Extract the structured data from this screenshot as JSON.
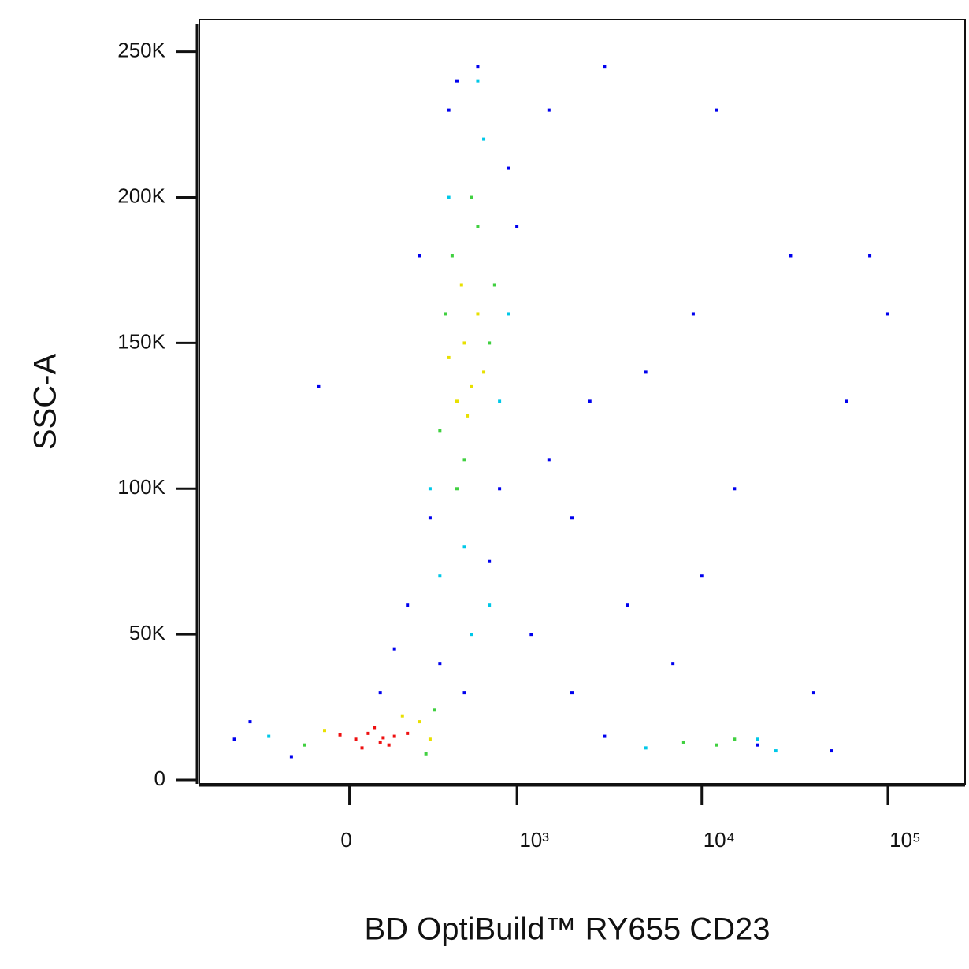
{
  "chart_data": {
    "type": "scatter",
    "x_label": "BD OptiBuild™ RY655 CD23",
    "y_label": "SSC-A",
    "xscale": "biexponential",
    "xlim": [
      -800,
      260000
    ],
    "ylim": [
      -800,
      261000
    ],
    "xticks": [
      0,
      {
        "value": 1000,
        "label": "10³"
      },
      {
        "value": 10000,
        "label": "10⁴"
      },
      {
        "value": 100000,
        "label": "10⁵"
      }
    ],
    "yticks": [
      0,
      {
        "value": 50000,
        "label": "50K"
      },
      {
        "value": 100000,
        "label": "100K"
      },
      {
        "value": 150000,
        "label": "150K"
      },
      {
        "value": 200000,
        "label": "200K"
      },
      {
        "value": 250000,
        "label": "250K"
      }
    ],
    "series": [
      {
        "color": "#0000ee",
        "x": [
          -500,
          -400,
          -200,
          100,
          200,
          250,
          300,
          350,
          400,
          450,
          500,
          600,
          700,
          800,
          900,
          1000,
          1200,
          1500,
          2000,
          2500,
          3000,
          4000,
          5000,
          7000,
          9000,
          12000,
          15000,
          20000,
          30000,
          40000,
          60000,
          80000,
          100000,
          2000,
          3000,
          1500,
          -100,
          150,
          50000,
          10000
        ],
        "y": [
          14000,
          20000,
          8000,
          30000,
          60000,
          180000,
          90000,
          40000,
          230000,
          240000,
          30000,
          245000,
          75000,
          100000,
          210000,
          190000,
          50000,
          110000,
          90000,
          130000,
          245000,
          60000,
          140000,
          40000,
          160000,
          230000,
          100000,
          12000,
          180000,
          30000,
          130000,
          180000,
          160000,
          30000,
          15000,
          230000,
          135000,
          45000,
          10000,
          70000
        ]
      },
      {
        "color": "#00c8e8",
        "x": [
          300,
          800,
          650,
          400,
          350,
          900,
          500,
          5000,
          20000,
          25000,
          -300,
          700,
          600,
          550
        ],
        "y": [
          100000,
          130000,
          220000,
          200000,
          70000,
          160000,
          80000,
          11000,
          14000,
          10000,
          15000,
          60000,
          240000,
          50000
        ]
      },
      {
        "color": "#40d040",
        "x": [
          350,
          420,
          700,
          600,
          500,
          380,
          550,
          -150,
          320,
          280,
          8000,
          12000,
          15000,
          750,
          450
        ],
        "y": [
          120000,
          180000,
          150000,
          190000,
          110000,
          160000,
          200000,
          12000,
          24000,
          9000,
          13000,
          12000,
          14000,
          170000,
          100000
        ]
      },
      {
        "color": "#e8e000",
        "x": [
          400,
          500,
          550,
          600,
          450,
          -80,
          250,
          300,
          180,
          520,
          480,
          650
        ],
        "y": [
          145000,
          150000,
          135000,
          160000,
          130000,
          17000,
          20000,
          14000,
          22000,
          125000,
          170000,
          140000
        ]
      },
      {
        "color": "#ee1010",
        "x": [
          20,
          60,
          100,
          150,
          -30,
          80,
          130,
          200,
          40,
          110
        ],
        "y": [
          14000,
          16000,
          13000,
          15000,
          15500,
          18000,
          12000,
          16000,
          11000,
          14500
        ]
      }
    ]
  }
}
